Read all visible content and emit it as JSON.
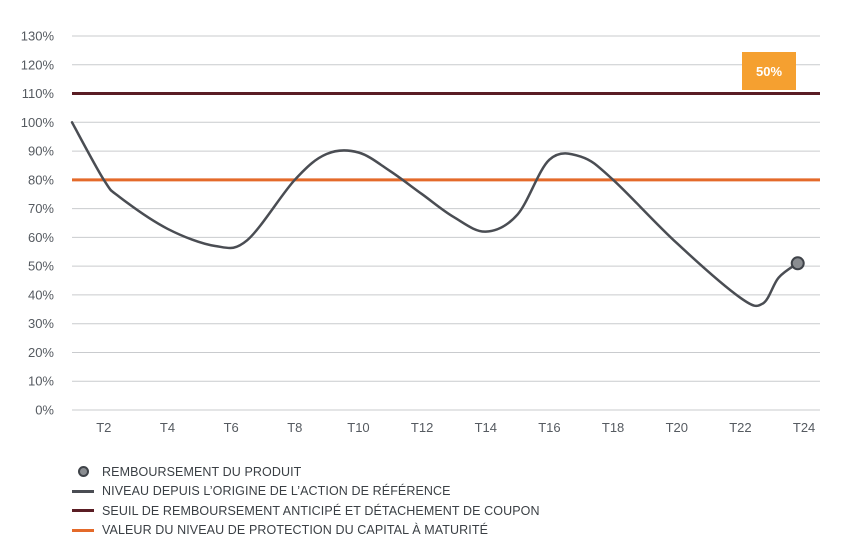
{
  "chart_data": {
    "type": "line",
    "y_ticks": [
      "0%",
      "10%",
      "20%",
      "30%",
      "40%",
      "50%",
      "60%",
      "70%",
      "80%",
      "90%",
      "100%",
      "110%",
      "120%",
      "130%"
    ],
    "ylim": [
      0,
      130
    ],
    "categories": [
      "T2",
      "T4",
      "T6",
      "T8",
      "T10",
      "T12",
      "T14",
      "T16",
      "T18",
      "T20",
      "T22",
      "T24"
    ],
    "xlim": [
      1,
      24.5
    ],
    "grid": true,
    "series": [
      {
        "name": "NIVEAU DEPUIS L'ORIGINE DE L'ACTION DE RÉFÉRENCE",
        "color": "#4a4d53",
        "points": [
          [
            1,
            100
          ],
          [
            2,
            80
          ],
          [
            2.5,
            74
          ],
          [
            4,
            63
          ],
          [
            5.5,
            57
          ],
          [
            6.5,
            59
          ],
          [
            8,
            80
          ],
          [
            9,
            89
          ],
          [
            10,
            89.5
          ],
          [
            11,
            83
          ],
          [
            12,
            75
          ],
          [
            13,
            67
          ],
          [
            14,
            62
          ],
          [
            15,
            68
          ],
          [
            16,
            87
          ],
          [
            17,
            88
          ],
          [
            18,
            80
          ],
          [
            20,
            58
          ],
          [
            22,
            39
          ],
          [
            22.7,
            37
          ],
          [
            23.2,
            46
          ],
          [
            23.8,
            51
          ]
        ]
      }
    ],
    "reference_lines": [
      {
        "name": "SEUIL DE REMBOURSEMENT ANTICIPÉ ET DÉTACHEMENT DE COUPON",
        "value": 110,
        "color": "#5a1d24"
      },
      {
        "name": "VALEUR DU NIVEAU DE PROTECTION DU CAPITAL À MATURITÉ",
        "value": 80,
        "color": "#e46a2a"
      }
    ],
    "marker": {
      "name": "REMBOURSEMENT DU PRODUIT",
      "x": 23.8,
      "y": 51,
      "color": "#8a8d91"
    },
    "annotation": {
      "text": "50%",
      "color": "#f5a030"
    },
    "legend": [
      {
        "type": "circle",
        "label": "REMBOURSEMENT DU PRODUIT",
        "color": "#8a8d91"
      },
      {
        "type": "line",
        "label": "NIVEAU DEPUIS L’ORIGINE DE L’ACTION DE RÉFÉRENCE",
        "color": "#4a4d53"
      },
      {
        "type": "line",
        "label": "SEUIL DE REMBOURSEMENT ANTICIPÉ ET DÉTACHEMENT DE COUPON",
        "color": "#5a1d24"
      },
      {
        "type": "line",
        "label": "VALEUR DU NIVEAU DE PROTECTION DU CAPITAL À MATURITÉ",
        "color": "#e46a2a"
      }
    ],
    "legend_position": "bottom-left"
  }
}
